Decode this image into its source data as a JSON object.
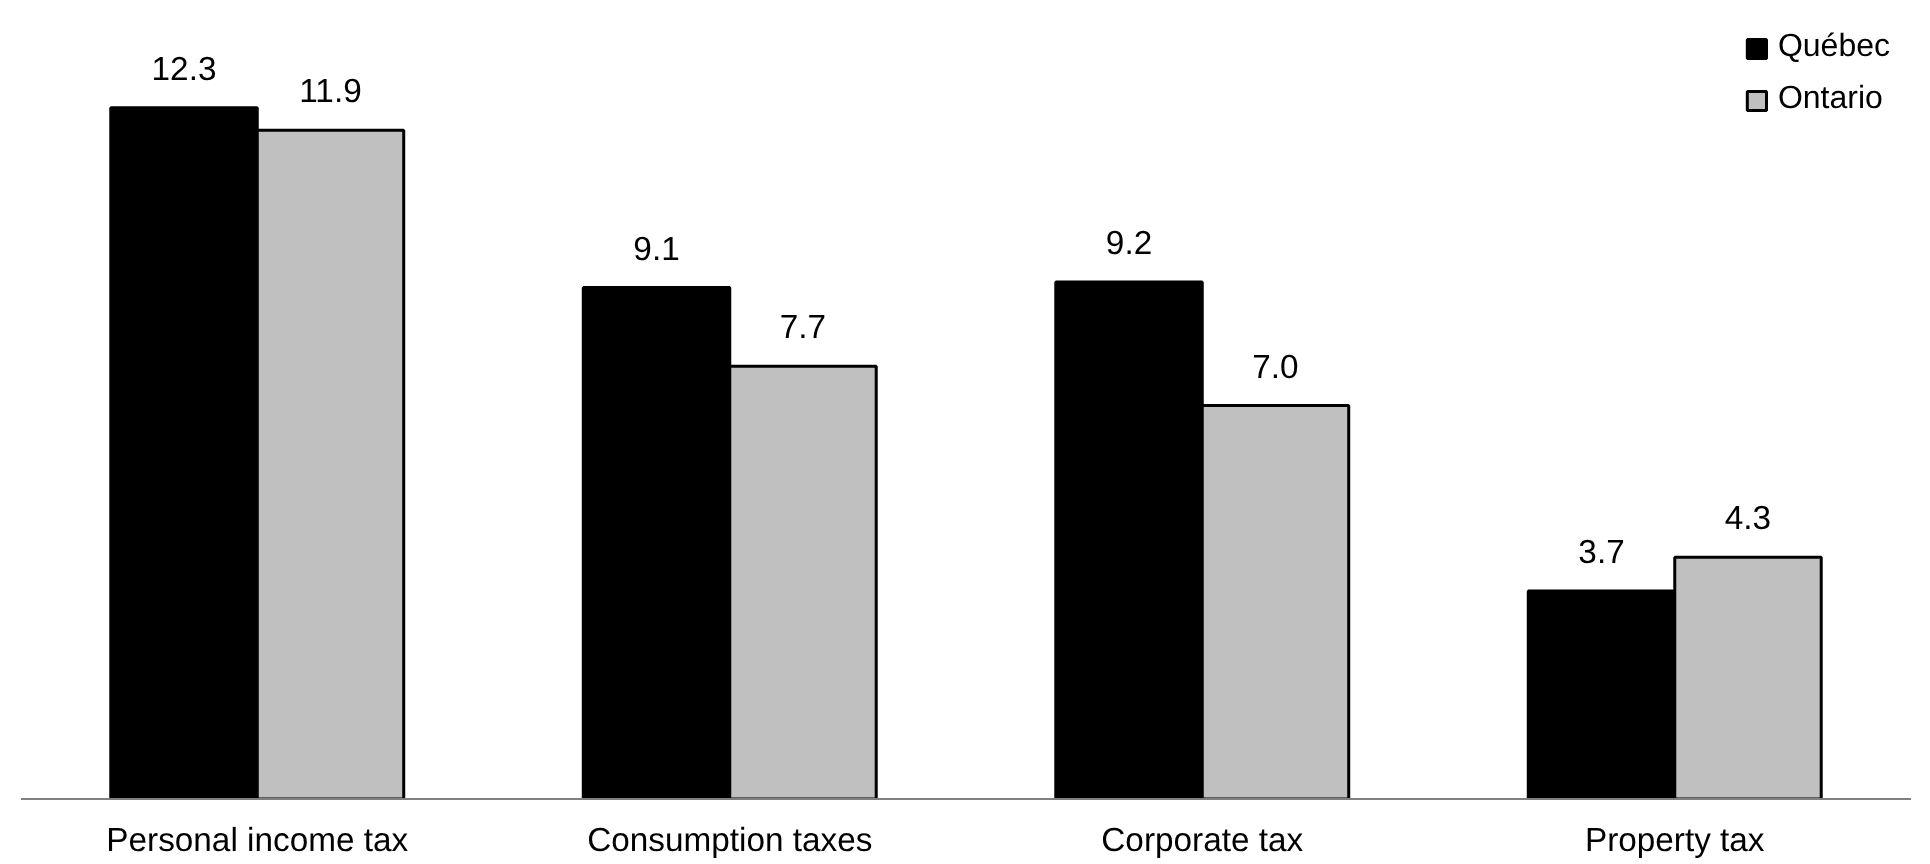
{
  "chart_data": {
    "type": "bar",
    "categories": [
      "Personal income tax",
      "Consumption taxes",
      "Corporate tax",
      "Property tax"
    ],
    "series": [
      {
        "name": "Québec",
        "color": "#000000",
        "values": [
          12.3,
          9.1,
          9.2,
          3.7
        ],
        "value_labels": [
          "12.3",
          "9.1",
          "9.2",
          "3.7"
        ]
      },
      {
        "name": "Ontario",
        "color": "#c0c0c0",
        "values": [
          11.9,
          7.7,
          7.0,
          4.3
        ],
        "value_labels": [
          "11.9",
          "7.7",
          "7.0",
          "4.3"
        ]
      }
    ],
    "legend": "top right",
    "grid": false
  }
}
